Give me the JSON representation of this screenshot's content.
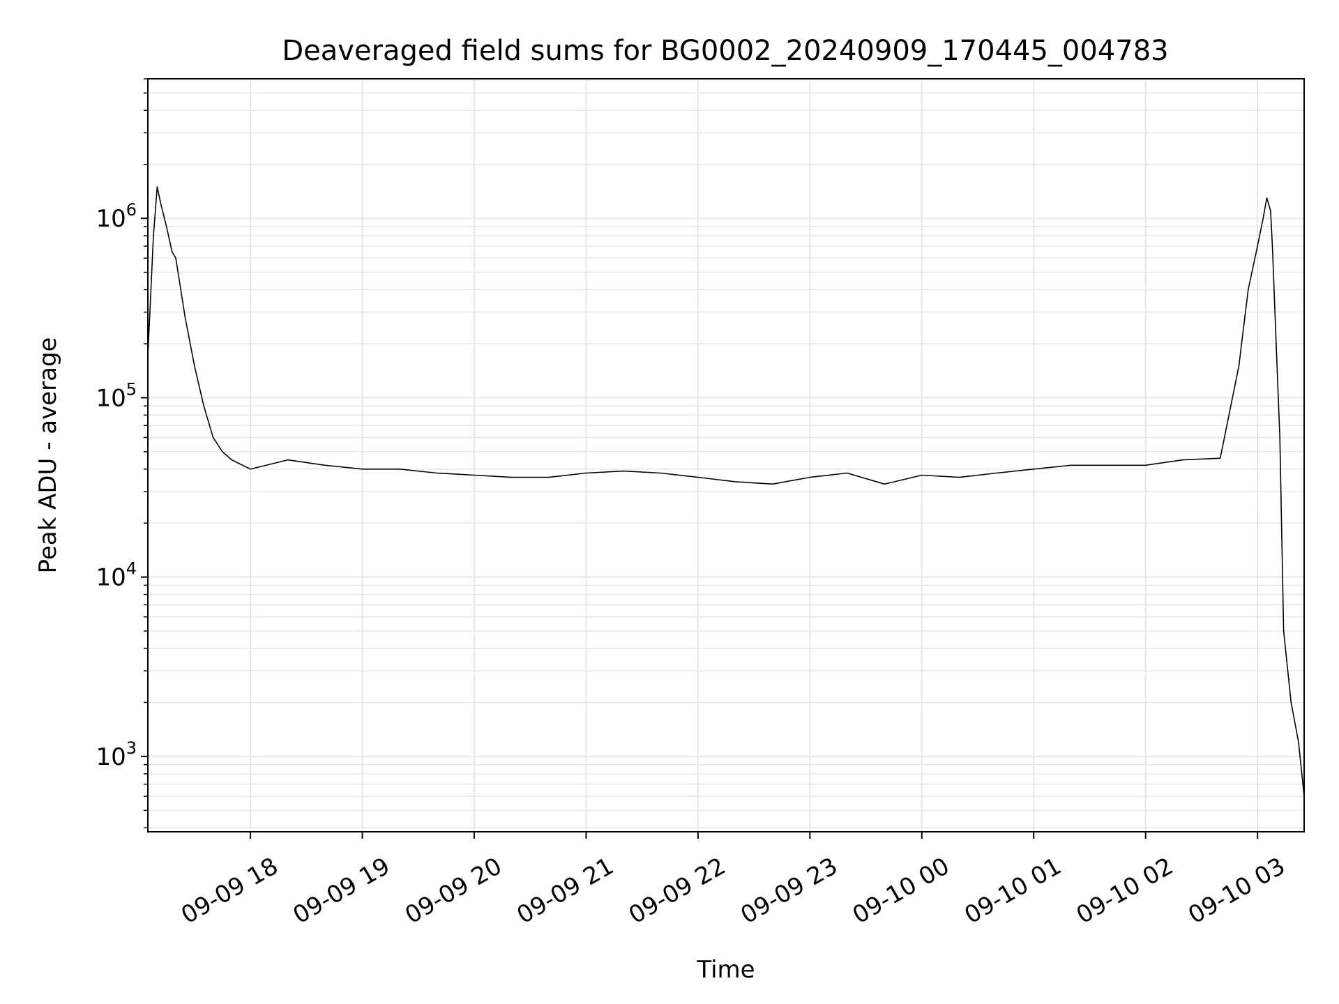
{
  "chart_data": {
    "type": "line",
    "title": "Deaveraged field sums for BG0002_20240909_170445_004783",
    "xlabel": "Time",
    "ylabel": "Peak ADU - average",
    "yscale": "log",
    "grid": true,
    "line_color": "#000000",
    "grid_color": "#e6e6e6",
    "xlim": [
      "2024-09-09 17:05",
      "2024-09-10 03:25"
    ],
    "ylim": [
      380,
      6000000
    ],
    "x_ticks": [
      {
        "value": "2024-09-09 18:00",
        "label": "09-09 18"
      },
      {
        "value": "2024-09-09 19:00",
        "label": "09-09 19"
      },
      {
        "value": "2024-09-09 20:00",
        "label": "09-09 20"
      },
      {
        "value": "2024-09-09 21:00",
        "label": "09-09 21"
      },
      {
        "value": "2024-09-09 22:00",
        "label": "09-09 22"
      },
      {
        "value": "2024-09-09 23:00",
        "label": "09-09 23"
      },
      {
        "value": "2024-09-10 00:00",
        "label": "09-10 00"
      },
      {
        "value": "2024-09-10 01:00",
        "label": "09-10 01"
      },
      {
        "value": "2024-09-10 02:00",
        "label": "09-10 02"
      },
      {
        "value": "2024-09-10 03:00",
        "label": "09-10 03"
      }
    ],
    "y_ticks": [
      {
        "value": 1000,
        "base": "10",
        "exp": "3"
      },
      {
        "value": 10000,
        "base": "10",
        "exp": "4"
      },
      {
        "value": 100000,
        "base": "10",
        "exp": "5"
      },
      {
        "value": 1000000,
        "base": "10",
        "exp": "6"
      }
    ],
    "series": [
      {
        "x": [
          "2024-09-09 17:05",
          "2024-09-09 17:08",
          "2024-09-09 17:10",
          "2024-09-09 17:12",
          "2024-09-09 17:15",
          "2024-09-09 17:18",
          "2024-09-09 17:20",
          "2024-09-09 17:25",
          "2024-09-09 17:30",
          "2024-09-09 17:35",
          "2024-09-09 17:40",
          "2024-09-09 17:45",
          "2024-09-09 17:50",
          "2024-09-09 18:00",
          "2024-09-09 18:20",
          "2024-09-09 18:40",
          "2024-09-09 19:00",
          "2024-09-09 19:20",
          "2024-09-09 19:40",
          "2024-09-09 20:00",
          "2024-09-09 20:20",
          "2024-09-09 20:40",
          "2024-09-09 21:00",
          "2024-09-09 21:20",
          "2024-09-09 21:40",
          "2024-09-09 22:00",
          "2024-09-09 22:20",
          "2024-09-09 22:40",
          "2024-09-09 23:00",
          "2024-09-09 23:20",
          "2024-09-09 23:40",
          "2024-09-10 00:00",
          "2024-09-10 00:20",
          "2024-09-10 00:40",
          "2024-09-10 01:00",
          "2024-09-10 01:20",
          "2024-09-10 01:40",
          "2024-09-10 02:00",
          "2024-09-10 02:20",
          "2024-09-10 02:40",
          "2024-09-10 02:50",
          "2024-09-10 02:55",
          "2024-09-10 03:00",
          "2024-09-10 03:03",
          "2024-09-10 03:05",
          "2024-09-10 03:07",
          "2024-09-10 03:08",
          "2024-09-10 03:10",
          "2024-09-10 03:12",
          "2024-09-10 03:14",
          "2024-09-10 03:18",
          "2024-09-10 03:22",
          "2024-09-10 03:25"
        ],
        "y": [
          170000,
          800000,
          1500000,
          1200000,
          900000,
          650000,
          600000,
          280000,
          150000,
          90000,
          60000,
          50000,
          45000,
          40000,
          45000,
          42000,
          40000,
          40000,
          38000,
          37000,
          36000,
          36000,
          38000,
          39000,
          38000,
          36000,
          34000,
          33000,
          36000,
          38000,
          33000,
          37000,
          36000,
          38000,
          40000,
          42000,
          42000,
          42000,
          45000,
          46000,
          150000,
          400000,
          700000,
          1000000,
          1300000,
          1100000,
          700000,
          200000,
          60000,
          5000,
          2000,
          1200,
          600
        ]
      }
    ]
  }
}
